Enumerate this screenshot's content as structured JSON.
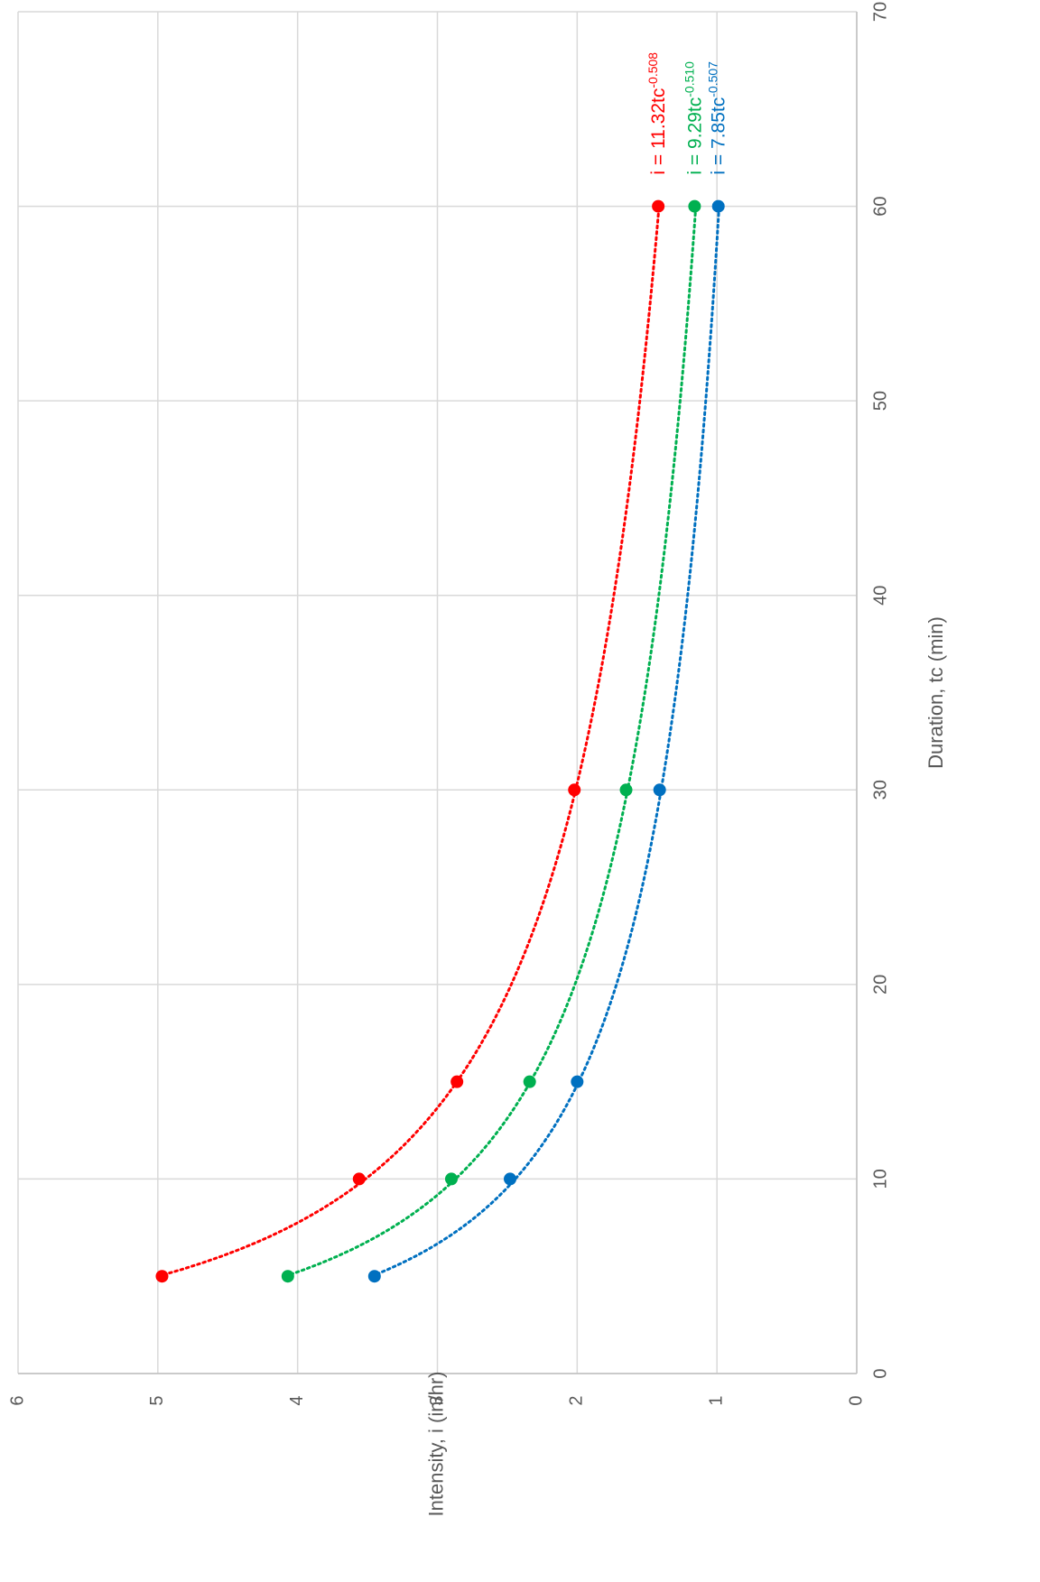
{
  "chart_data": {
    "type": "scatter",
    "title": "",
    "xlabel": "Duration, tc (min)",
    "ylabel": "Intensity, i (in/hr)",
    "xlim": [
      0,
      70
    ],
    "ylim": [
      0,
      6
    ],
    "x_ticks": [
      "0",
      "10",
      "20",
      "30",
      "40",
      "50",
      "60",
      "70"
    ],
    "y_ticks": [
      "0",
      "1",
      "2",
      "3",
      "4",
      "5",
      "6"
    ],
    "grid": true,
    "orientation": "rotated 90 degrees clockwise",
    "series": [
      {
        "color": "#FF0000",
        "x": [
          5,
          10,
          15,
          30,
          60
        ],
        "y": [
          4.97,
          3.56,
          2.86,
          2.02,
          1.42
        ],
        "trendline": {
          "type": "power",
          "a": 11.32,
          "b": -0.508
        },
        "equation": {
          "lhs": "i = 11.32tc",
          "exp": "-0.508"
        }
      },
      {
        "color": "#00B050",
        "x": [
          5,
          10,
          15,
          30,
          60
        ],
        "y": [
          4.07,
          2.9,
          2.34,
          1.65,
          1.16
        ],
        "trendline": {
          "type": "power",
          "a": 9.29,
          "b": -0.51
        },
        "equation": {
          "lhs": "i = 9.29tc",
          "exp": "-0.510"
        }
      },
      {
        "color": "#0070C0",
        "x": [
          5,
          10,
          15,
          30,
          60
        ],
        "y": [
          3.45,
          2.48,
          2.0,
          1.41,
          0.99
        ],
        "trendline": {
          "type": "power",
          "a": 7.85,
          "b": -0.507
        },
        "equation": {
          "lhs": "i = 7.85tc",
          "exp": "-0.507"
        }
      }
    ]
  }
}
